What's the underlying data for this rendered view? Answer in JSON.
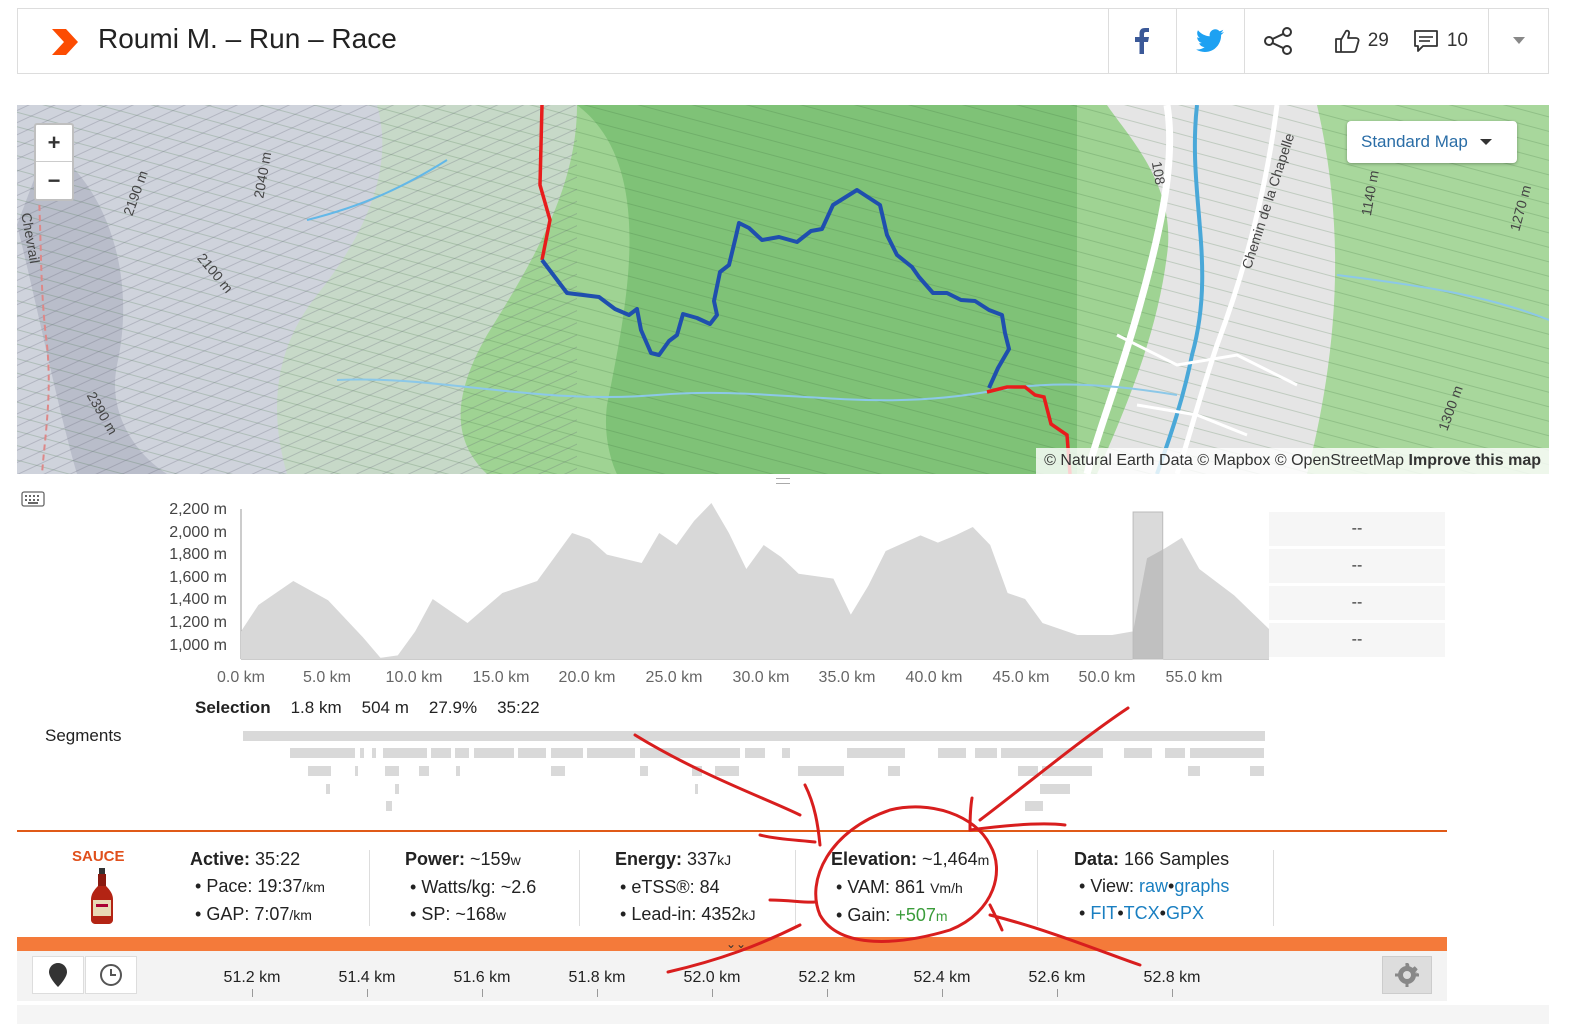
{
  "header": {
    "title": "Roumi M. – Run – Race",
    "kudos_count": "29",
    "comments_count": "10",
    "brand_color": "#fc4c02"
  },
  "map": {
    "zoom_in": "+",
    "zoom_out": "−",
    "map_type": "Standard Map",
    "attribution": "© Natural Earth Data © Mapbox © OpenStreetMap",
    "improve": "Improve this map",
    "labels": [
      "2190 m",
      "2040 m",
      "2100 m",
      "2390 m",
      "Chevrail",
      "Chemin de la Chapelle",
      "1140 m",
      "1270 m",
      "1300 m",
      "108"
    ]
  },
  "elevation_chart": {
    "y_ticks": [
      "2,200 m",
      "2,000 m",
      "1,800 m",
      "1,600 m",
      "1,400 m",
      "1,200 m",
      "1,000 m"
    ],
    "x_ticks": [
      "0.0 km",
      "5.0 km",
      "10.0 km",
      "15.0 km",
      "20.0 km",
      "25.0 km",
      "30.0 km",
      "35.0 km",
      "40.0 km",
      "45.0 km",
      "50.0 km",
      "55.0 km"
    ],
    "side_values": [
      "--",
      "--",
      "--",
      "--"
    ]
  },
  "chart_data": {
    "type": "area",
    "xlabel": "",
    "ylabel": "",
    "x": [
      0,
      1,
      3,
      5,
      7,
      8,
      9,
      10,
      11,
      13,
      15,
      17,
      19,
      20,
      21,
      23,
      24,
      25,
      26,
      27,
      28,
      29,
      30,
      31,
      32,
      34,
      35,
      36,
      37,
      39,
      40,
      41,
      42,
      43,
      44,
      45,
      46,
      48,
      50,
      51.2,
      52,
      53,
      54,
      55,
      57,
      59
    ],
    "values": [
      1180,
      1400,
      1600,
      1440,
      1130,
      960,
      980,
      1180,
      1450,
      1250,
      1500,
      1600,
      2000,
      1950,
      1820,
      1750,
      2000,
      1900,
      2100,
      2250,
      2000,
      1700,
      1900,
      1800,
      1660,
      1620,
      1320,
      1560,
      1850,
      1980,
      1920,
      1980,
      2050,
      1900,
      1500,
      1450,
      1250,
      1150,
      1150,
      1180,
      1790,
      1870,
      1960,
      1700,
      1480,
      1200
    ],
    "ylim": [
      950,
      2200
    ],
    "xlim": [
      0,
      59
    ],
    "selection_km": [
      51.2,
      52.9
    ]
  },
  "selection": {
    "label": "Selection",
    "distance": "1.8 km",
    "gain": "504 m",
    "grade": "27.9%",
    "time": "35:22"
  },
  "segments_label": "Segments",
  "stats": {
    "sauce": "SAUCE",
    "active_label": "Active:",
    "active_value": "35:22",
    "pace_label": "• Pace:",
    "pace_value": "19:37",
    "pace_unit": "/km",
    "gap_label": "• GAP:",
    "gap_value": "7:07",
    "gap_unit": "/km",
    "power_label": "Power:",
    "power_value": "~159",
    "power_unit": "w",
    "wkg_label": "• Watts/kg:",
    "wkg_value": "~2.6",
    "sp_label": "• SP:",
    "sp_value": "~168",
    "sp_unit": "w",
    "energy_label": "Energy:",
    "energy_value": "337",
    "energy_unit": "kJ",
    "etss_label": "• eTSS®:",
    "etss_value": "84",
    "leadin_label": "• Lead-in:",
    "leadin_value": "4352",
    "leadin_unit": "kJ",
    "elev_label": "Elevation:",
    "elev_value": "~1,464",
    "elev_unit": "m",
    "vam_label": "• VAM:",
    "vam_value": "861",
    "vam_unit": "Vm/h",
    "gain_label": "• Gain:",
    "gain_value": "+507",
    "gain_unit": "m",
    "data_label": "Data:",
    "data_value": "166 Samples",
    "view_label": "• View:",
    "view_raw": "raw",
    "view_graphs": "graphs",
    "fit": "FIT",
    "tcx": "TCX",
    "gpx": "GPX"
  },
  "timeline": {
    "ticks": [
      "51.2 km",
      "51.4 km",
      "51.6 km",
      "51.8 km",
      "52.0 km",
      "52.2 km",
      "52.4 km",
      "52.6 km",
      "52.8 km"
    ]
  },
  "colors": {
    "accent": "#f47a3a",
    "link": "#1a7fc1",
    "route_red": "#e81c1c",
    "route_blue": "#1f4fae",
    "annotation_red": "#d81e1e"
  }
}
